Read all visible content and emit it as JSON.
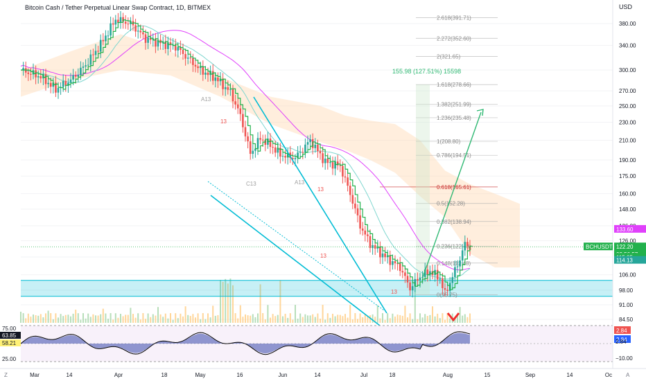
{
  "header": {
    "title": "Bitcoin Cash / Tether Perpetual Linear Swap Contract, 1D, BITMEX",
    "currency": "USD"
  },
  "colors": {
    "up": "#26a69a",
    "down": "#ef5350",
    "stairs": "#22b14c",
    "ma_pink": "#e040fb",
    "ma_teal": "#7fd6cf",
    "cloud": "#ffd9b3",
    "cyan": "#00bcd4",
    "fib": "#b0b0b0",
    "fib_key": "#c62828",
    "projection": "#2eb872",
    "arrow_red": "#ef2c2c"
  },
  "chart_data": {
    "type": "candlestick",
    "title": "Bitcoin Cash / Tether Perpetual Linear Swap Contract, 1D, BITMEX",
    "y_scale": "log",
    "ylim": [
      82,
      415
    ],
    "x_ticks": [
      "Mar",
      "14",
      "Apr",
      "18",
      "May",
      "16",
      "Jun",
      "14",
      "Jul",
      "18",
      "Aug",
      "15",
      "Sep",
      "14",
      "Oc"
    ],
    "y_ticks": [
      "380.00",
      "340.00",
      "300.00",
      "270.00",
      "250.00",
      "230.00",
      "210.00",
      "190.00",
      "175.00",
      "160.00",
      "148.00",
      "136.00",
      "126.00",
      "116.00",
      "106.00",
      "98.00",
      "91.00",
      "84.50"
    ],
    "price_waypoints": [
      [
        0,
        300
      ],
      [
        8,
        290
      ],
      [
        14,
        272
      ],
      [
        20,
        285
      ],
      [
        26,
        308
      ],
      [
        32,
        342
      ],
      [
        38,
        388
      ],
      [
        44,
        380
      ],
      [
        50,
        352
      ],
      [
        56,
        344
      ],
      [
        62,
        338
      ],
      [
        66,
        322
      ],
      [
        72,
        300
      ],
      [
        78,
        288
      ],
      [
        84,
        268
      ],
      [
        88,
        238
      ],
      [
        92,
        196
      ],
      [
        96,
        212
      ],
      [
        100,
        205
      ],
      [
        104,
        195
      ],
      [
        110,
        192
      ],
      [
        116,
        210
      ],
      [
        122,
        188
      ],
      [
        128,
        184
      ],
      [
        132,
        160
      ],
      [
        136,
        136
      ],
      [
        140,
        124
      ],
      [
        146,
        116
      ],
      [
        152,
        110
      ],
      [
        156,
        99
      ],
      [
        160,
        105
      ],
      [
        164,
        108
      ],
      [
        168,
        104
      ],
      [
        170,
        96
      ],
      [
        172,
        102
      ],
      [
        176,
        115
      ],
      [
        178,
        124
      ],
      [
        180,
        122
      ]
    ],
    "fib_levels": [
      {
        "label": "2.618(391.71)",
        "price": 391.71
      },
      {
        "label": "2.272(352.60)",
        "price": 352.6
      },
      {
        "label": "2(321.65)",
        "price": 321.65
      },
      {
        "label": "1.618(278.66)",
        "price": 278.66
      },
      {
        "label": "1.382(251.99)",
        "price": 251.99
      },
      {
        "label": "1.236(235.48)",
        "price": 235.48
      },
      {
        "label": "1(208.80)",
        "price": 208.8
      },
      {
        "label": "0.786(194.51)",
        "price": 194.51
      },
      {
        "label": "0.618(165.61)",
        "price": 165.61
      },
      {
        "label": "0.5(152.28)",
        "price": 152.28
      },
      {
        "label": "0.382(138.94)",
        "price": 138.94
      },
      {
        "label": "0.236(122.43)",
        "price": 122.43
      },
      {
        "label": "0.148(112.48)",
        "price": 112.48
      },
      {
        "label": "0(95.75)",
        "price": 95.75
      }
    ],
    "fib_key_level": "0.618(165.61)",
    "projection_label": "155.98 (127.51%) 15598",
    "cycle_labels": [
      "A13",
      "C13",
      "A13",
      "13",
      "13",
      "13",
      "13"
    ],
    "price_tags": [
      {
        "label": "133.60",
        "price": 133.6,
        "color": "#e040fb"
      },
      {
        "label": "122.20",
        "price": 122.2,
        "color": "#22b14c",
        "name": "BCHUSDT",
        "countdown": "03:56:57"
      },
      {
        "label": "115.85",
        "price": 115.85,
        "color": "#22b14c"
      },
      {
        "label": "114.13",
        "price": 114.13,
        "color": "#26a69a"
      }
    ],
    "oscillator": {
      "levels": [
        "75.00",
        "25.00"
      ],
      "left_tags": [
        {
          "label": "63.85",
          "color": "#131722"
        },
        {
          "label": "58.21",
          "color": "#fff176"
        }
      ],
      "right_ticks": [
        "2.84",
        "−10.00"
      ],
      "right_tags": [
        {
          "label": "2.84",
          "color": "#ef5350"
        },
        {
          "label": "2.84",
          "color": "#2962ff"
        }
      ]
    }
  }
}
